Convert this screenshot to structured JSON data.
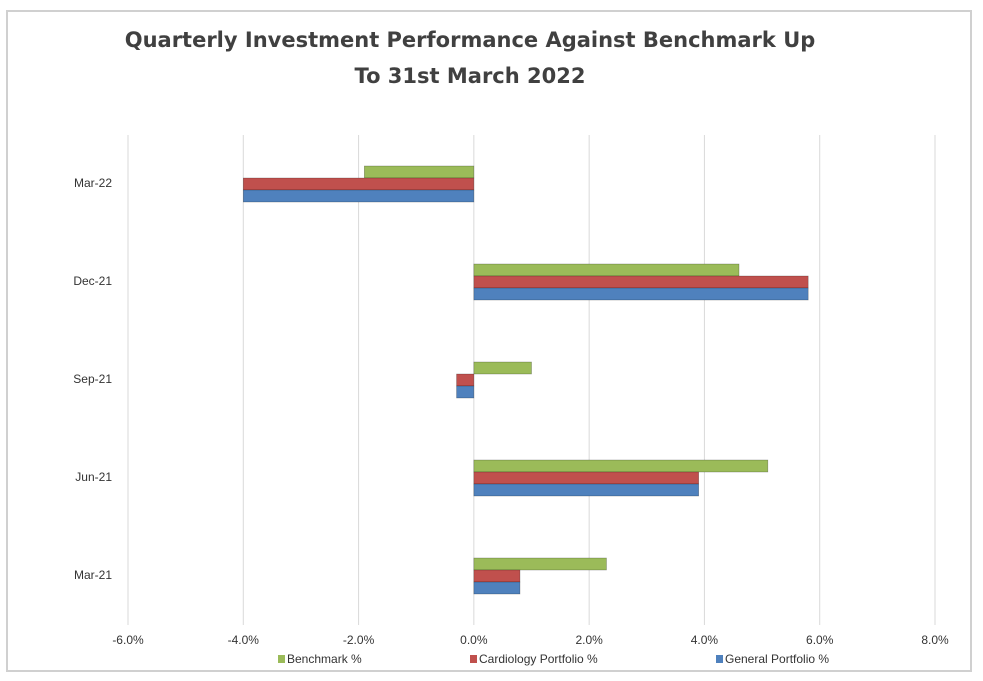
{
  "chart_data": {
    "type": "bar",
    "orientation": "horizontal",
    "title": "Quarterly Investment Performance Against Benchmark Up To 31st March 2022",
    "categories": [
      "Mar-21",
      "Jun-21",
      "Sep-21",
      "Dec-21",
      "Mar-22"
    ],
    "series": [
      {
        "name": "Benchmark %",
        "color": "#9bbb59",
        "values": [
          2.3,
          5.1,
          1.0,
          4.6,
          -1.9
        ]
      },
      {
        "name": "Cardiology Portfolio %",
        "color": "#c0504d",
        "values": [
          0.8,
          3.9,
          -0.3,
          5.8,
          -4.0
        ]
      },
      {
        "name": "General Portfolio %",
        "color": "#4f81bd",
        "values": [
          0.8,
          3.9,
          -0.3,
          5.8,
          -4.0
        ]
      }
    ],
    "xlim": [
      -6,
      8
    ],
    "xticks": [
      {
        "value": -6,
        "label": "-6.0%"
      },
      {
        "value": -4,
        "label": "-4.0%"
      },
      {
        "value": -2,
        "label": "-2.0%"
      },
      {
        "value": 0,
        "label": "0.0%"
      },
      {
        "value": 2,
        "label": "2.0%"
      },
      {
        "value": 4,
        "label": "4.0%"
      },
      {
        "value": 6,
        "label": "6.0%"
      },
      {
        "value": 8,
        "label": "8.0%"
      }
    ],
    "grid": true,
    "legend": "bottom"
  }
}
